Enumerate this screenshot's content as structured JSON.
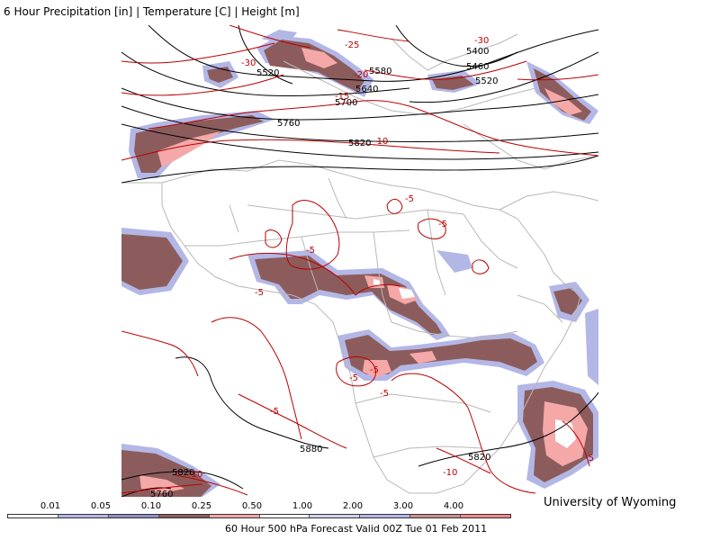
{
  "title": "6 Hour Precipitation [in] | Temperature [C] | Height [m]",
  "credit": "University of Wyoming",
  "footer": "60 Hour 500 hPa Forecast Valid 00Z Tue 01 Feb 2011",
  "legend": {
    "ticks": [
      "0.01",
      "0.05",
      "0.10",
      "0.25",
      "0.50",
      "1.00",
      "2.00",
      "3.00",
      "4.00"
    ],
    "colors": [
      "#ffffff",
      "#b3b7e6",
      "#8f8fc4",
      "#8c5c5c",
      "#f5a8a8",
      "#ffffff",
      "#cfd2f0",
      "#b3b7e6",
      "#c99090",
      "#f08a8a"
    ]
  },
  "colors": {
    "height_contour": "#000000",
    "temp_contour": "#bb0000",
    "borders": "#b8b8b8",
    "precip_light": "#b3b7e6",
    "precip_mid": "#8c5c5c",
    "precip_heavy": "#f5a8a8",
    "precip_extreme": "#ffffff"
  },
  "height_labels": [
    "5400",
    "5460",
    "5520",
    "5520",
    "5580",
    "5640",
    "5700",
    "5760",
    "5820",
    "5820",
    "5760",
    "5880",
    "5820"
  ],
  "temp_labels": [
    "-30",
    "-25",
    "-30",
    "-20",
    "-15",
    "-10",
    "-5",
    "-5",
    "-5",
    "-5",
    "-5",
    "-5",
    "-5",
    "-5",
    "-10",
    "-10",
    "-5"
  ]
}
